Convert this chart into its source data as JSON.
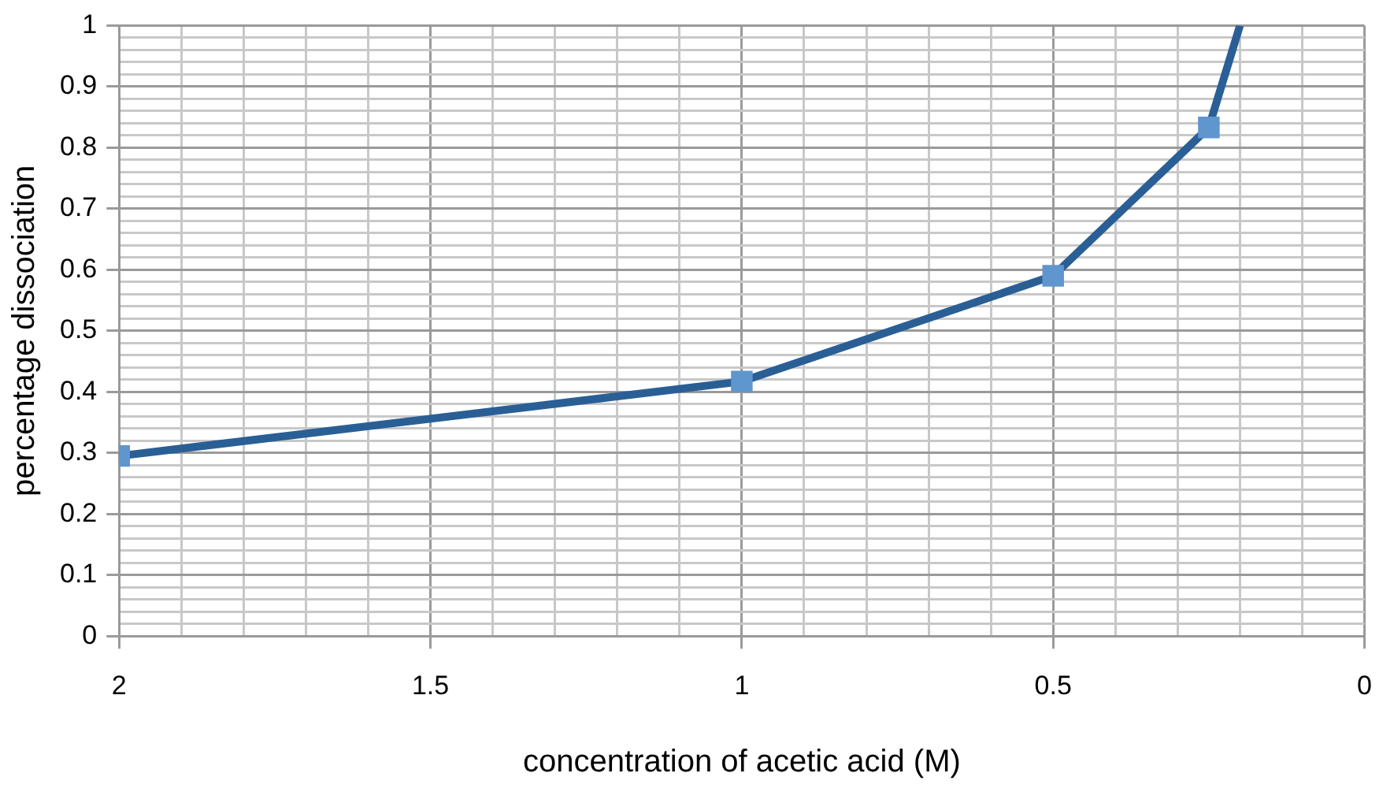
{
  "chart_data": {
    "type": "line",
    "xlabel": "concentration of acetic acid (M)",
    "ylabel": "percentage dissociation",
    "series": [
      {
        "type": "line",
        "color": "#2a5f96",
        "marker": "none",
        "x": [
          2,
          1,
          0.5,
          0.25,
          0.2
        ],
        "values": [
          0.295,
          0.417,
          0.59,
          0.833,
          1
        ]
      },
      {
        "type": "scatter",
        "color": "#5f96cd",
        "marker": "square",
        "x": [
          2,
          1,
          0.5,
          0.25
        ],
        "values": [
          0.295,
          0.417,
          0.59,
          0.833
        ]
      }
    ],
    "xlim": [
      2,
      0
    ],
    "xticks": [
      2,
      {
        "value": 1.9,
        "label": null
      },
      {
        "value": 1.8,
        "label": null
      },
      {
        "value": 1.7,
        "label": null
      },
      {
        "value": 1.6,
        "label": null
      },
      1.5,
      {
        "value": 1.4,
        "label": null
      },
      {
        "value": 1.3,
        "label": null
      },
      {
        "value": 1.2,
        "label": null
      },
      {
        "value": 1.1,
        "label": null
      },
      1,
      {
        "value": 0.9,
        "label": null
      },
      {
        "value": 0.8,
        "label": null
      },
      {
        "value": 0.7,
        "label": null
      },
      {
        "value": 0.6,
        "label": null
      },
      0.5,
      {
        "value": 0.4,
        "label": null
      },
      {
        "value": 0.3,
        "label": null
      },
      {
        "value": 0.2,
        "label": null
      },
      {
        "value": 0.1,
        "label": null
      },
      0
    ],
    "ylim": [
      0,
      1
    ],
    "yticks": [
      0,
      {
        "value": 0.02,
        "label": null
      },
      {
        "value": 0.04,
        "label": null
      },
      {
        "value": 0.06,
        "label": null
      },
      {
        "value": 0.08,
        "label": null
      },
      0.1,
      {
        "value": 0.12,
        "label": null
      },
      {
        "value": 0.14,
        "label": null
      },
      {
        "value": 0.16,
        "label": null
      },
      {
        "value": 0.18,
        "label": null
      },
      0.2,
      {
        "value": 0.22,
        "label": null
      },
      {
        "value": 0.24,
        "label": null
      },
      {
        "value": 0.26,
        "label": null
      },
      {
        "value": 0.28,
        "label": null
      },
      0.3,
      {
        "value": 0.32,
        "label": null
      },
      {
        "value": 0.34,
        "label": null
      },
      {
        "value": 0.36,
        "label": null
      },
      {
        "value": 0.38,
        "label": null
      },
      0.4,
      {
        "value": 0.42,
        "label": null
      },
      {
        "value": 0.44,
        "label": null
      },
      {
        "value": 0.46,
        "label": null
      },
      {
        "value": 0.48,
        "label": null
      },
      0.5,
      {
        "value": 0.52,
        "label": null
      },
      {
        "value": 0.54,
        "label": null
      },
      {
        "value": 0.56,
        "label": null
      },
      {
        "value": 0.58,
        "label": null
      },
      0.6,
      {
        "value": 0.62,
        "label": null
      },
      {
        "value": 0.64,
        "label": null
      },
      {
        "value": 0.66,
        "label": null
      },
      {
        "value": 0.68,
        "label": null
      },
      0.7,
      {
        "value": 0.72,
        "label": null
      },
      {
        "value": 0.74,
        "label": null
      },
      {
        "value": 0.76,
        "label": null
      },
      {
        "value": 0.78,
        "label": null
      },
      0.8,
      {
        "value": 0.82,
        "label": null
      },
      {
        "value": 0.84,
        "label": null
      },
      {
        "value": 0.86,
        "label": null
      },
      {
        "value": 0.88,
        "label": null
      },
      0.9,
      {
        "value": 0.92,
        "label": null
      },
      {
        "value": 0.94,
        "label": null
      },
      {
        "value": 0.96,
        "label": null
      },
      {
        "value": 0.98,
        "label": null
      },
      1
    ],
    "grid": true
  }
}
